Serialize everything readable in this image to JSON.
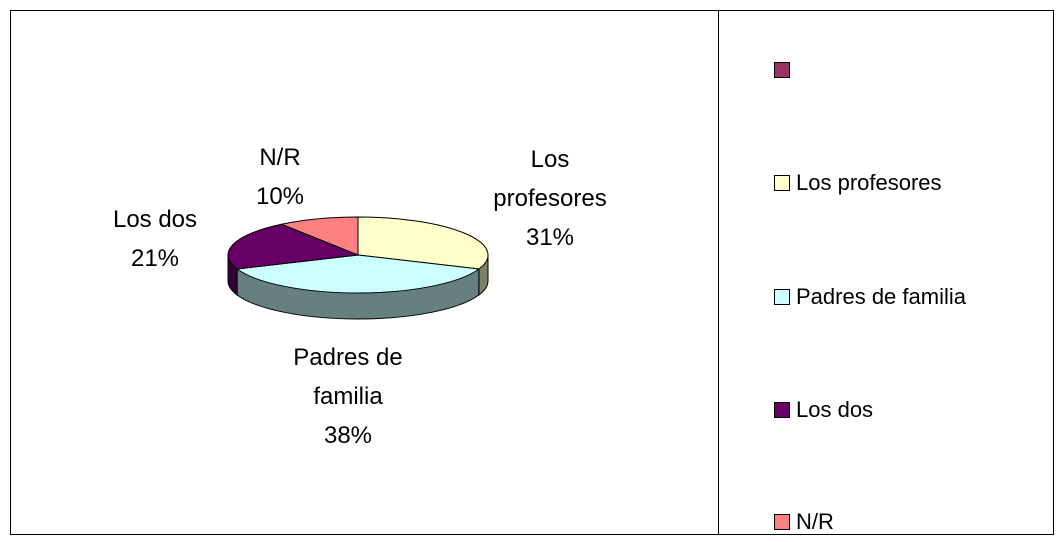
{
  "chart_data": {
    "type": "pie3d",
    "categories": [
      null,
      "Los profesores",
      "Padres de familia",
      "Los dos",
      "N/R"
    ],
    "values": [
      0,
      31,
      38,
      21,
      10
    ],
    "value_labels": [
      null,
      "31%",
      "38%",
      "21%",
      "10%"
    ],
    "colors": [
      "#993366",
      "#FFFFCC",
      "#CCFFFF",
      "#660066",
      "#FF8080"
    ],
    "legend": "right"
  }
}
